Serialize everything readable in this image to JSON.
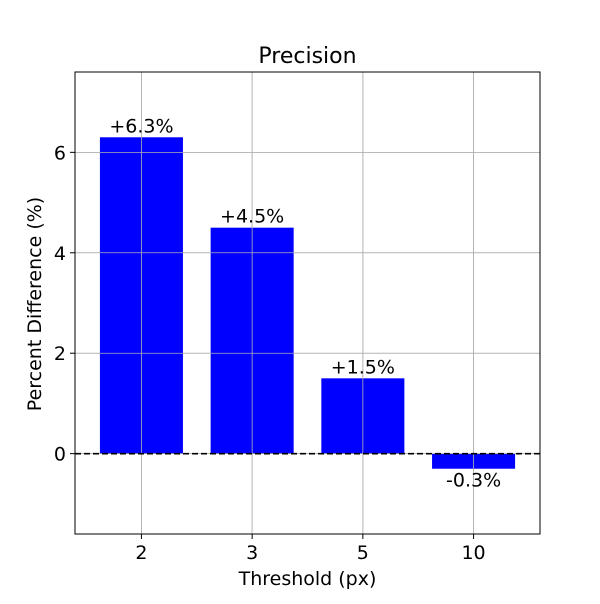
{
  "chart_data": {
    "type": "bar",
    "title": "Precision",
    "xlabel": "Threshold (px)",
    "ylabel": "Percent Difference (%)",
    "categories": [
      "2",
      "3",
      "5",
      "10"
    ],
    "values": [
      6.3,
      4.5,
      1.5,
      -0.3
    ],
    "data_labels": [
      "+6.3%",
      "+4.5%",
      "+1.5%",
      "-0.3%"
    ],
    "ylim": [
      -1.6,
      7.6
    ],
    "yticks": [
      0,
      2,
      4,
      6
    ],
    "grid": true,
    "bar_color": "#0000ff",
    "reference_line": {
      "y": 0,
      "style": "dashed",
      "color": "#000000"
    }
  }
}
